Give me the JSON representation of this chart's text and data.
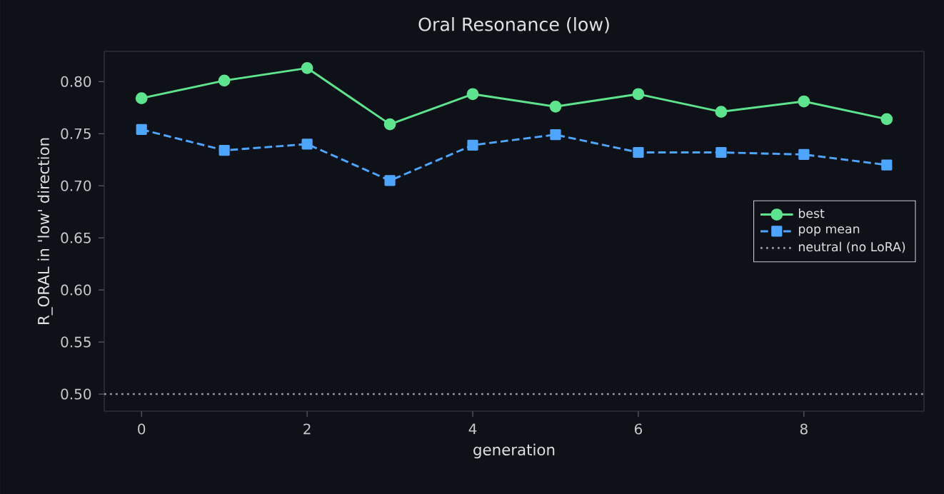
{
  "chart_data": {
    "type": "line",
    "title": "Oral Resonance (low)",
    "xlabel": "generation",
    "ylabel": "R_ORAL in 'low' direction",
    "x": [
      0,
      1,
      2,
      3,
      4,
      5,
      6,
      7,
      8,
      9
    ],
    "series": [
      {
        "name": "best",
        "color": "#5ee38e",
        "marker": "circle",
        "line_style": "solid",
        "values": [
          0.784,
          0.801,
          0.813,
          0.759,
          0.788,
          0.776,
          0.788,
          0.771,
          0.781,
          0.764
        ]
      },
      {
        "name": "pop mean",
        "color": "#4ea5ff",
        "marker": "square",
        "line_style": "dashed",
        "values": [
          0.754,
          0.734,
          0.74,
          0.705,
          0.739,
          0.749,
          0.732,
          0.732,
          0.73,
          0.72
        ]
      }
    ],
    "ref_lines": [
      {
        "axis": "y",
        "value": 0.5,
        "label": "neutral (no LoRA)",
        "color": "#9a9ea6",
        "line_style": "dotted"
      }
    ],
    "xlim": [
      -0.45,
      9.45
    ],
    "ylim": [
      0.4836,
      0.829
    ],
    "xticks": [
      0,
      2,
      4,
      6,
      8
    ],
    "yticks": [
      {
        "value": 0.5,
        "label": "0.50"
      },
      {
        "value": 0.55,
        "label": "0.55"
      },
      {
        "value": 0.6,
        "label": "0.60"
      },
      {
        "value": 0.65,
        "label": "0.65"
      },
      {
        "value": 0.7,
        "label": "0.70"
      },
      {
        "value": 0.75,
        "label": "0.75"
      },
      {
        "value": 0.8,
        "label": "0.80"
      }
    ],
    "grid": false,
    "legend": "right"
  }
}
